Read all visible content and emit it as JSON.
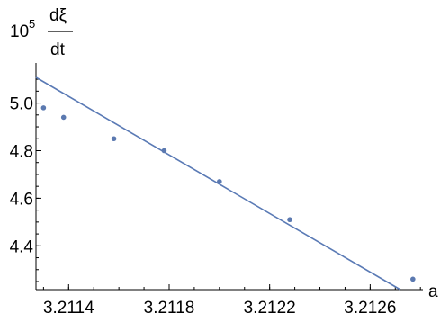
{
  "chart_data": {
    "type": "scatter",
    "ylabel_factor": "10",
    "ylabel_exponent": "5",
    "ylabel_numerator": "dξ",
    "ylabel_denominator": "dt",
    "xlabel": "a",
    "xlim": [
      3.21127,
      3.21281
    ],
    "ylim": [
      4.216,
      5.108
    ],
    "x_ticks": [
      {
        "value": 3.2114,
        "label": "3.2114"
      },
      {
        "value": 3.2118,
        "label": "3.2118"
      },
      {
        "value": 3.2122,
        "label": "3.2122"
      },
      {
        "value": 3.2126,
        "label": "3.2126"
      }
    ],
    "y_ticks": [
      {
        "value": 4.4,
        "label": "4.4"
      },
      {
        "value": 4.6,
        "label": "4.6"
      },
      {
        "value": 4.8,
        "label": "4.8"
      },
      {
        "value": 5.0,
        "label": "5.0"
      }
    ],
    "x_minor_step": 0.0001,
    "y_minor_step": 0.05,
    "points": [
      {
        "x": 3.2113,
        "y": 4.98
      },
      {
        "x": 3.21138,
        "y": 4.94
      },
      {
        "x": 3.21158,
        "y": 4.85
      },
      {
        "x": 3.21178,
        "y": 4.8
      },
      {
        "x": 3.212,
        "y": 4.67
      },
      {
        "x": 3.21228,
        "y": 4.51
      },
      {
        "x": 3.21277,
        "y": 4.26
      }
    ],
    "fit_line": {
      "x": [
        3.21127,
        3.21272
      ],
      "y": [
        5.108,
        4.216
      ]
    },
    "colors": {
      "points": "#5b79b0",
      "line": "#5a7ab5",
      "axes": "#000000"
    },
    "grid": false
  }
}
